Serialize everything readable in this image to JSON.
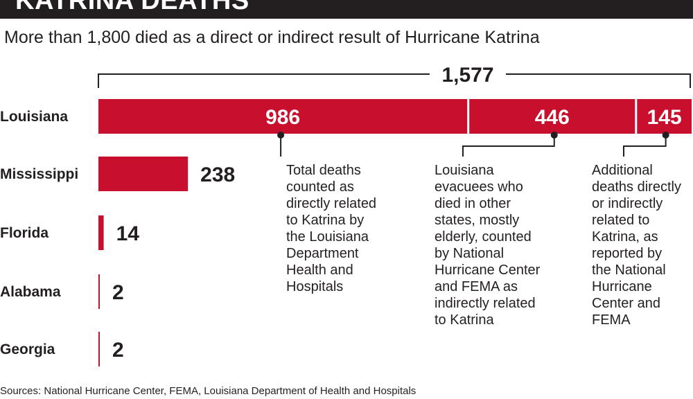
{
  "title": "KATRINA DEATHS",
  "subtitle": "More than 1,800 died as a direct or indirect result of Hurricane Katrina",
  "colors": {
    "bar": "#c8102e",
    "text": "#231f20",
    "title_bg": "#231f20"
  },
  "chart_data": {
    "type": "bar",
    "orientation": "horizontal",
    "categories": [
      "Louisiana",
      "Mississippi",
      "Florida",
      "Alabama",
      "Georgia"
    ],
    "values": [
      1577,
      238,
      14,
      2,
      2
    ],
    "value_labels": [
      "1,577",
      "238",
      "14",
      "2",
      "2"
    ],
    "louisiana_breakdown": [
      {
        "value": 986,
        "label": "986",
        "note": "Total deaths counted as directly related to Katrina by the Louisiana Department Health and Hospitals"
      },
      {
        "value": 446,
        "label": "446",
        "note": "Louisiana evacuees who died in other states, mostly elderly, counted by National Hurricane Center and FEMA as indirectly related to Katrina"
      },
      {
        "value": 145,
        "label": "145",
        "note": "Additional deaths directly or indirectly related to Katrina, as reported by the National Hurricane Center and FEMA"
      }
    ],
    "grid": false,
    "legend": "none"
  },
  "notes": {
    "n1": [
      "Total deaths",
      "counted as",
      "directly related",
      "to Katrina by",
      "the Louisiana",
      "Department",
      "Health and",
      "Hospitals"
    ],
    "n2": [
      "Louisiana",
      "evacuees who",
      "died in other",
      "states, mostly",
      "elderly, counted",
      "by National",
      "Hurricane Center",
      "and FEMA as",
      "indirectly related",
      "to Katrina"
    ],
    "n3": [
      "Additional",
      "deaths directly",
      "or indirectly",
      "related to",
      "Katrina, as",
      "reported by",
      "the National",
      "Hurricane",
      "Center and",
      "FEMA"
    ]
  },
  "source": "Sources: National Hurricane Center, FEMA, Louisiana Department of Health and Hospitals"
}
